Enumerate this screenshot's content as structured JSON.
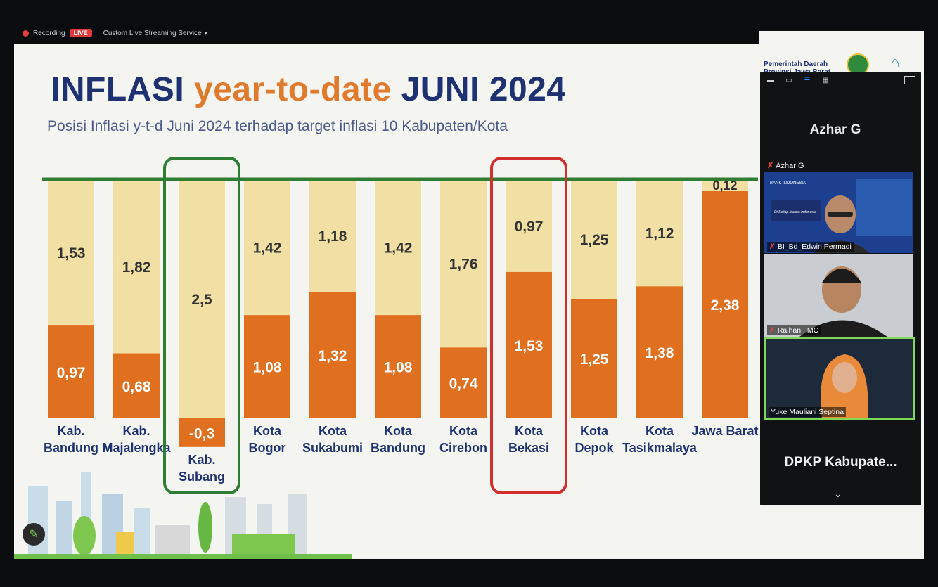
{
  "recording_bar": {
    "recording_label": "Recording",
    "live_label": "LIVE",
    "stream_label": "Custom Live Streaming Service",
    "caret": "▾"
  },
  "slide": {
    "title_a": "INFLASI ",
    "title_b": "year-to-date",
    "title_c": " JUNI 2024",
    "subtitle": "Posisi Inflasi y-t-d Juni 2024 terhadap target inflasi 10 Kabupaten/Kota",
    "org_line1": "Pemerintah Daerah",
    "org_line2": "Provinsi Jawa Barat"
  },
  "chart_data": {
    "type": "bar",
    "stacked": true,
    "categories": [
      "Kab. Bandung",
      "Kab. Majalengka",
      "Kab. Subang",
      "Kota Bogor",
      "Kota Sukabumi",
      "Kota Bandung",
      "Kota Cirebon",
      "Kota Bekasi",
      "Kota Depok",
      "Kota Tasikmalaya",
      "Jawa Barat"
    ],
    "category_lines": [
      [
        "Kab.",
        "Bandung"
      ],
      [
        "Kab.",
        "Majalengka"
      ],
      [
        "Kab.",
        "Subang"
      ],
      [
        "Kota",
        "Bogor"
      ],
      [
        "Kota",
        "Sukabumi"
      ],
      [
        "Kota",
        "Bandung"
      ],
      [
        "Kota",
        "Cirebon"
      ],
      [
        "Kota",
        "Bekasi"
      ],
      [
        "Kota",
        "Depok"
      ],
      [
        "Kota",
        "Tasikmalaya"
      ],
      [
        "Jawa Barat"
      ]
    ],
    "series": [
      {
        "values": [
          0.97,
          0.68,
          -0.3,
          1.08,
          1.32,
          1.08,
          0.74,
          1.53,
          1.25,
          1.38,
          2.38
        ],
        "color": "#e0701f"
      },
      {
        "values": [
          1.53,
          1.82,
          2.5,
          1.42,
          1.18,
          1.42,
          1.76,
          0.97,
          1.25,
          1.12,
          0.12
        ],
        "color": "#f2dfa3"
      }
    ],
    "labels": [
      [
        "0,97",
        "0,68",
        "-0,3",
        "1,08",
        "1,32",
        "1,08",
        "0,74",
        "1,53",
        "1,25",
        "1,38",
        "2,38"
      ],
      [
        "1,53",
        "1,82",
        "2,5",
        "1,42",
        "1,18",
        "1,42",
        "1,76",
        "0,97",
        "1,25",
        "1,12",
        "0,12"
      ]
    ],
    "target_line": 2.5,
    "target_color": "#2e7d32",
    "highlight": [
      {
        "category": "Kab. Subang",
        "color": "#2e7d32"
      },
      {
        "category": "Kota Bekasi",
        "color": "#d32f2f"
      }
    ]
  },
  "zoom": {
    "host_name": "Azhar G",
    "host_mic_name": "Azhar G",
    "tiles": {
      "bi_name": "BI_Bd_Edwin Permadi",
      "raihan_name": "Raihan I MC",
      "yuke_name": "Yuke Mauliani Septina",
      "bi_logo_text": "BANK INDONESIA",
      "bi_banner": "Di Setiap Makna Indonesia"
    },
    "footer_name": "DPKP  Kabupate...",
    "mic_icon": "✗",
    "down_icon": "⌄"
  }
}
